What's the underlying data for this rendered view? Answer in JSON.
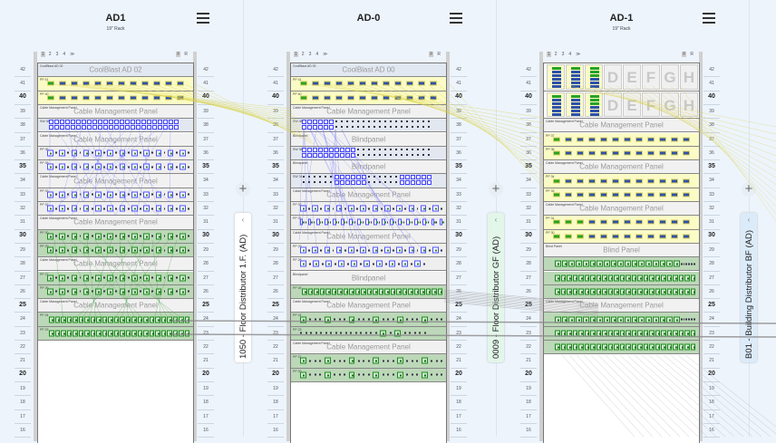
{
  "colors": {
    "yellow_panel": "#fbfbc6",
    "green_panel": "#bcd8b8",
    "blue_port": "#5050ff",
    "green_port": "#1b8a1b",
    "background": "#edf4fc"
  },
  "racks": [
    {
      "title": "AD1",
      "subtitle": "19\" Rack",
      "nav": {
        "pages": [
          "1",
          "2",
          "3",
          "4"
        ],
        "more": "≫",
        "front": "F",
        "rear": "R"
      },
      "side_tab": "1050 - Floor Distributor 1.F. (AD)",
      "side_tab_color": "#ffffff",
      "units": [
        {
          "u": 42,
          "type": "device",
          "label": "CoolBlast AD 02",
          "title": "CoolBlast AD 02"
        },
        {
          "u": 41,
          "type": "yellow",
          "label": "PP 41",
          "ports": 12,
          "active": 1
        },
        {
          "u": 40,
          "type": "yellow",
          "label": "PP 40",
          "ports": 12,
          "active": 1
        },
        {
          "u": 39,
          "type": "cmp",
          "label": "Cable Management Panel",
          "title": "Cable Management Panel"
        },
        {
          "u": 38,
          "type": "switch",
          "label": "SW 38",
          "ports": 24,
          "active": 24
        },
        {
          "u": 37,
          "type": "cmp",
          "label": "Cable Management Panel",
          "title": "Cable Management Panel"
        },
        {
          "u": 36,
          "type": "blue",
          "label": "PP 36",
          "ports": 12,
          "pattern": "alt"
        },
        {
          "u": 35,
          "type": "blue",
          "label": "PP 35",
          "ports": 12,
          "pattern": "alt"
        },
        {
          "u": 34,
          "type": "cmp",
          "label": "Cable Management Panel",
          "title": "Cable Management Panel"
        },
        {
          "u": 33,
          "type": "blue",
          "label": "PP 33",
          "ports": 12,
          "pattern": "alt"
        },
        {
          "u": 32,
          "type": "blue",
          "label": "PP 32",
          "ports": 12,
          "pattern": "alt"
        },
        {
          "u": 31,
          "type": "cmp",
          "label": "Cable Management Panel",
          "title": "Cable Management Panel"
        },
        {
          "u": 30,
          "type": "green",
          "label": "PP 30",
          "ports": 12,
          "pattern": "alt"
        },
        {
          "u": 29,
          "type": "green",
          "label": "PP 29",
          "ports": 12,
          "pattern": "alt"
        },
        {
          "u": 28,
          "type": "cmp",
          "label": "Cable Management Panel",
          "title": "Cable Management Panel"
        },
        {
          "u": 27,
          "type": "green",
          "label": "PP 27",
          "ports": 12,
          "pattern": "alt"
        },
        {
          "u": 26,
          "type": "green",
          "label": "PP 26",
          "ports": 12,
          "pattern": "alt"
        },
        {
          "u": 25,
          "type": "cmp",
          "label": "Cable Management Panel",
          "title": "Cable Management Panel"
        },
        {
          "u": 24,
          "type": "green",
          "label": "PP 24",
          "ports": 24,
          "pattern": "dense"
        },
        {
          "u": 23,
          "type": "green",
          "label": "PP 23",
          "ports": 24,
          "pattern": "dense"
        }
      ]
    },
    {
      "title": "AD-0",
      "subtitle": "",
      "nav": {
        "pages": [
          "1",
          "2",
          "3",
          "4"
        ],
        "more": "≫",
        "front": "F",
        "rear": "R"
      },
      "side_tab": "0009 - Floor Distributor GF (AD)",
      "side_tab_color": "#e3f6ea",
      "units": [
        {
          "u": 42,
          "type": "device",
          "label": "CoolBlast AD 00",
          "title": "CoolBlast AD 00"
        },
        {
          "u": 41,
          "type": "yellow",
          "label": "PP 41",
          "ports": 12,
          "active": 1
        },
        {
          "u": 40,
          "type": "yellow",
          "label": "PP 40",
          "ports": 12,
          "active": 1
        },
        {
          "u": 39,
          "type": "cmp",
          "label": "Cable Management Panel",
          "title": "Cable Management Panel"
        },
        {
          "u": 38,
          "type": "switch",
          "label": "SW 38",
          "ports": 24,
          "active": 6
        },
        {
          "u": 37,
          "type": "cmp",
          "label": "Blindpanel",
          "title": "Blindpanel"
        },
        {
          "u": 36,
          "type": "switch",
          "label": "SW 36",
          "ports": 24,
          "active": 10
        },
        {
          "u": 35,
          "type": "cmp",
          "label": "Blindpanel",
          "title": "Blindpanel"
        },
        {
          "u": 34,
          "type": "switch",
          "label": "SW 34",
          "ports": 24,
          "active": 6
        },
        {
          "u": 33,
          "type": "cmp",
          "label": "Cable Management Panel",
          "title": "Cable Management Panel"
        },
        {
          "u": 32,
          "type": "blue",
          "label": "PP 32",
          "ports": 12,
          "pattern": "alt"
        },
        {
          "u": 31,
          "type": "blue",
          "label": "PP 31",
          "ports": 18,
          "pattern": "alt"
        },
        {
          "u": 30,
          "type": "cmp",
          "label": "Cable Management Panel",
          "title": "Cable Management Panel"
        },
        {
          "u": 29,
          "type": "blue",
          "label": "PP 29",
          "ports": 12,
          "pattern": "alt"
        },
        {
          "u": 28,
          "type": "blue",
          "label": "PP 28",
          "ports": 10,
          "pattern": "alt"
        },
        {
          "u": 27,
          "type": "cmp",
          "label": "Blindpanel",
          "title": "Blindpanel"
        },
        {
          "u": 26,
          "type": "green",
          "label": "PP 26",
          "ports": 24,
          "pattern": "dense"
        },
        {
          "u": 25,
          "type": "cmp",
          "label": "Cable Management Panel",
          "title": "Cable Management Panel"
        },
        {
          "u": 24,
          "type": "green",
          "label": "PP 24",
          "ports": 6,
          "pattern": "sparse"
        },
        {
          "u": 23,
          "type": "green",
          "label": "PP 23",
          "ports": 2,
          "pattern": "sparse"
        },
        {
          "u": 22,
          "type": "cmp",
          "label": "Cable Management Panel",
          "title": "Cable Management Panel"
        },
        {
          "u": 21,
          "type": "green",
          "label": "PP 21",
          "ports": 6,
          "pattern": "sparse"
        },
        {
          "u": 20,
          "type": "green",
          "label": "PP 20",
          "ports": 6,
          "pattern": "sparse"
        }
      ]
    },
    {
      "title": "AD-1",
      "subtitle": "19\" Rack",
      "nav": {
        "pages": [
          "1",
          "2",
          "3",
          "4"
        ],
        "more": "≫",
        "front": "F",
        "rear": "R"
      },
      "side_tab": "B01 - Building Distributor BF (AD)",
      "side_tab_color": "#dcebfa",
      "units": [
        {
          "u": 42,
          "type": "modules",
          "height": 2,
          "slots": [
            "A",
            "B",
            "C",
            "D",
            "E",
            "F",
            "G",
            "H"
          ],
          "used": 3
        },
        {
          "u": 40,
          "type": "modules",
          "height": 2,
          "slots": [
            "A",
            "B",
            "C",
            "D",
            "E",
            "F",
            "G",
            "H"
          ],
          "used": 3
        },
        {
          "u": 38,
          "type": "cmp",
          "label": "Cable Management Panel",
          "title": "Cable Management Panel"
        },
        {
          "u": 37,
          "type": "yellow",
          "label": "PP 37",
          "ports": 12,
          "active": 1
        },
        {
          "u": 36,
          "type": "yellow",
          "label": "PP 36",
          "ports": 12,
          "active": 1
        },
        {
          "u": 35,
          "type": "cmp",
          "label": "Cable Management Panel",
          "title": "Cable Management Panel"
        },
        {
          "u": 34,
          "type": "yellow",
          "label": "PP 34",
          "ports": 12,
          "active": 1
        },
        {
          "u": 33,
          "type": "yellow",
          "label": "PP 33",
          "ports": 12,
          "active": 1
        },
        {
          "u": 32,
          "type": "cmp",
          "label": "Cable Management Panel",
          "title": "Cable Management Panel"
        },
        {
          "u": 31,
          "type": "yellow",
          "label": "PP 31",
          "ports": 12,
          "active": 3
        },
        {
          "u": 30,
          "type": "yellow",
          "label": "PP 30",
          "ports": 12,
          "active": 3
        },
        {
          "u": 29,
          "type": "cmp",
          "label": "Blind Panel",
          "title": "Blind Panel"
        },
        {
          "u": 28,
          "type": "green",
          "label": "",
          "ports": 18,
          "pattern": "dense"
        },
        {
          "u": 27,
          "type": "green",
          "label": "",
          "ports": 24,
          "pattern": "dense"
        },
        {
          "u": 26,
          "type": "green",
          "label": "",
          "ports": 24,
          "pattern": "dense"
        },
        {
          "u": 25,
          "type": "cmp",
          "label": "Cable Management Panel",
          "title": "Cable Management Panel"
        },
        {
          "u": 24,
          "type": "green",
          "label": "",
          "ports": 18,
          "pattern": "dense"
        },
        {
          "u": 23,
          "type": "green",
          "label": "",
          "ports": 24,
          "pattern": "dense"
        },
        {
          "u": 22,
          "type": "green",
          "label": "",
          "ports": 24,
          "pattern": "dense"
        }
      ]
    }
  ],
  "unit_numbers": [
    42,
    41,
    40,
    39,
    38,
    37,
    36,
    35,
    34,
    33,
    32,
    31,
    30,
    29,
    28,
    27,
    26,
    25,
    24,
    23,
    22,
    21,
    20,
    19,
    18,
    17,
    16
  ],
  "add_icon": "+",
  "collapse_icon": "‹"
}
